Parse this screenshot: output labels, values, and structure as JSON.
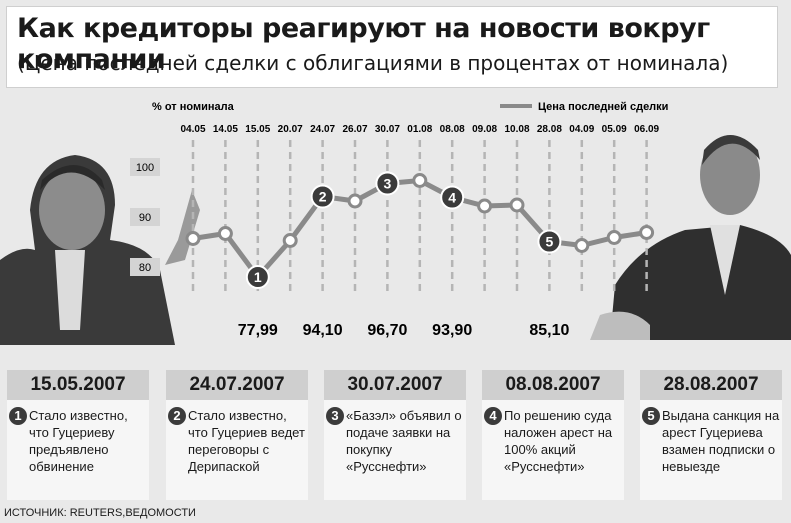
{
  "header": {
    "title": "Как кредиторы реагируют на новости вокруг компании",
    "subtitle": "(Цена последней сделки с облигациями в процентах от номинала)"
  },
  "chart_data": {
    "type": "line",
    "ylabel": "% от номинала",
    "legend": "Цена последней сделки",
    "legend_position": "top-right",
    "yticks": [
      80,
      90,
      100
    ],
    "ylim": [
      75,
      103
    ],
    "categories": [
      "04.05",
      "14.05",
      "15.05",
      "20.07",
      "24.07",
      "26.07",
      "30.07",
      "01.08",
      "08.08",
      "09.08",
      "10.08",
      "28.08",
      "04.09",
      "05.09",
      "06.09"
    ],
    "values": [
      85.7,
      86.7,
      77.99,
      85.3,
      94.1,
      93.2,
      96.7,
      97.3,
      93.9,
      92.2,
      92.4,
      85.1,
      84.3,
      85.9,
      86.9
    ],
    "markers": [
      {
        "index": 2,
        "label": "1",
        "value_label": "77,99"
      },
      {
        "index": 4,
        "label": "2",
        "value_label": "94,10"
      },
      {
        "index": 6,
        "label": "3",
        "value_label": "96,70"
      },
      {
        "index": 8,
        "label": "4",
        "value_label": "93,90"
      },
      {
        "index": 11,
        "label": "5",
        "value_label": "85,10"
      }
    ],
    "grid": true
  },
  "events": [
    {
      "num": "1",
      "date": "15.05.2007",
      "text": "Стало известно, что Гуцериеву предъявлено обвинение"
    },
    {
      "num": "2",
      "date": "24.07.2007",
      "text": "Стало известно, что Гуцериев ведет переговоры с Дерипаской"
    },
    {
      "num": "3",
      "date": "30.07.2007",
      "text": "«Базэл» объявил о подаче заявки на покупку «Русснефти»"
    },
    {
      "num": "4",
      "date": "08.08.2007",
      "text": "По решению суда наложен арест на 100% акций «Русснефти»"
    },
    {
      "num": "5",
      "date": "28.08.2007",
      "text": "Выдана санкция на арест Гуцериева взамен подписки о невыезде"
    }
  ],
  "source": "ИСТОЧНИК: REUTERS,ВЕДОМОСТИ",
  "colors": {
    "line": "#8a8a8a",
    "marker": "#3b3b3b",
    "grid": "#b5b5b5",
    "date_bar": "#cfcfcf"
  }
}
